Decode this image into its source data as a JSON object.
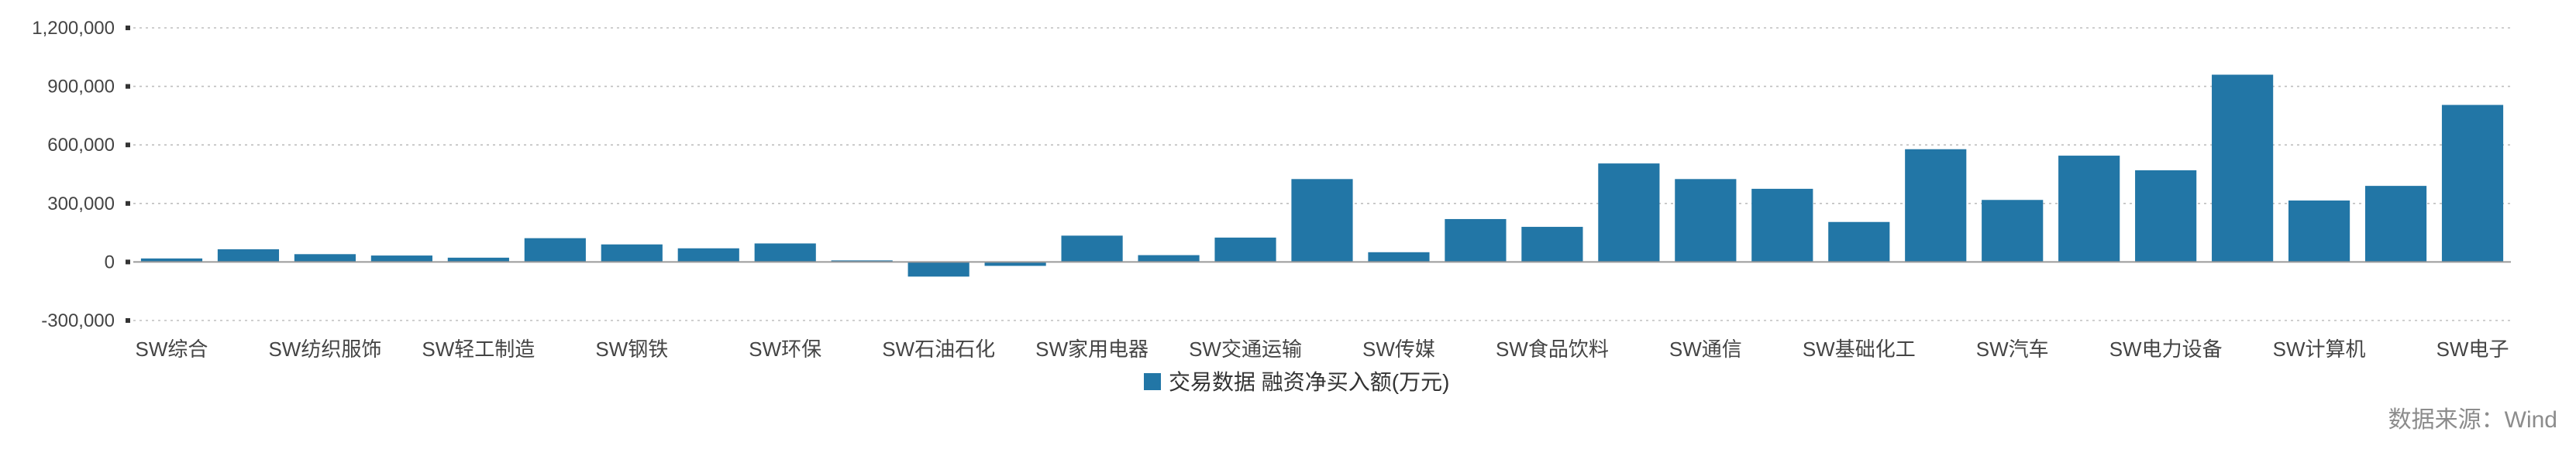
{
  "chart_data": {
    "type": "bar",
    "categories": [
      "SW综合",
      "",
      "SW纺织服饰",
      "",
      "SW轻工制造",
      "",
      "SW钢铁",
      "",
      "SW环保",
      "",
      "SW石油石化",
      "",
      "SW家用电器",
      "",
      "SW交通运输",
      "",
      "SW传媒",
      "",
      "SW食品饮料",
      "",
      "SW通信",
      "",
      "SW基础化工",
      "",
      "SW汽车",
      "",
      "SW电力设备",
      "",
      "SW计算机",
      "",
      "SW电子"
    ],
    "series": [
      {
        "name": "交易数据 融资净买入额(万元)",
        "values": [
          18000,
          65000,
          40000,
          33000,
          22000,
          122000,
          90000,
          70000,
          95000,
          8000,
          -75000,
          -20000,
          135000,
          35000,
          125000,
          425000,
          50000,
          220000,
          180000,
          505000,
          425000,
          375000,
          205000,
          578000,
          318000,
          545000,
          470000,
          960000,
          315000,
          390000,
          805000
        ]
      }
    ],
    "ylim": [
      -300000,
      1200000
    ],
    "yticks": [
      -300000,
      0,
      300000,
      600000,
      900000,
      1200000
    ],
    "ytick_labels": [
      "-300,000",
      "0",
      "300,000",
      "600,000",
      "900,000",
      "1,200,000"
    ],
    "grid": true,
    "legend_position": "bottom-center",
    "colors": {
      "bar": "#2276a6"
    },
    "source": "数据来源：Wind"
  }
}
